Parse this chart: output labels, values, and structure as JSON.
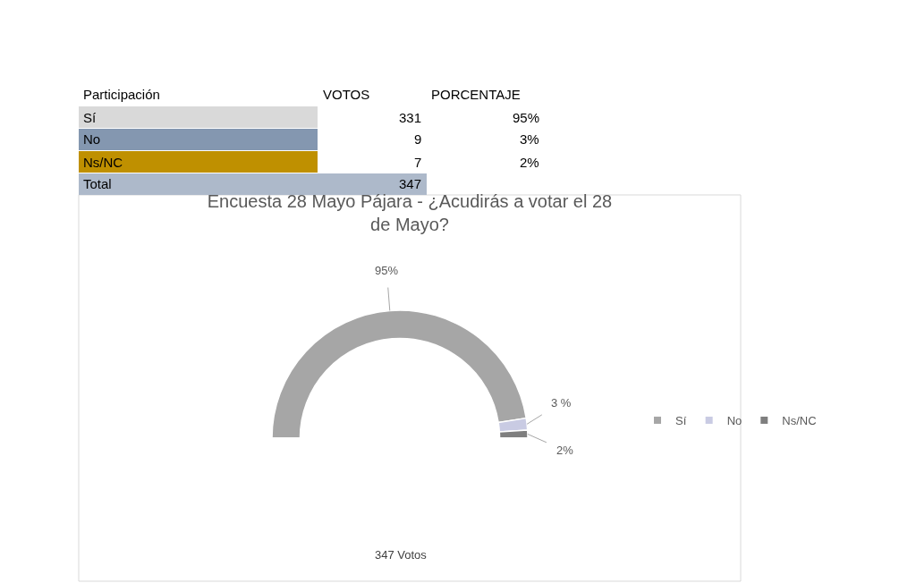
{
  "chart_data": {
    "type": "donut",
    "title": "Encuesta 28 Mayo Pájara - ¿Acudirás a votar el 28 de Mayo?",
    "categories": [
      "Sí",
      "No",
      "Ns/NC"
    ],
    "values": [
      95,
      3,
      2
    ],
    "colors": [
      "#a6a6a6",
      "#c9cbe3",
      "#7f7f7f"
    ],
    "value_labels": [
      "95%",
      "3 %",
      "2%"
    ],
    "legend": "right",
    "annotations": [
      "Participación",
      "VOTOS",
      "PORCENTAJE",
      "331",
      "95%",
      "9",
      "3%",
      "7",
      "2%",
      "Total",
      "347",
      "347 Votos"
    ]
  }
}
